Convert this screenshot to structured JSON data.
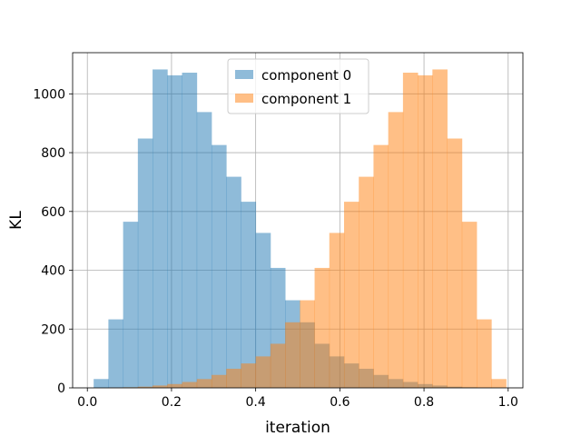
{
  "chart_data": {
    "type": "histogram",
    "xlabel": "iteration",
    "ylabel": "KL",
    "xlim": [
      -0.035,
      1.035
    ],
    "ylim": [
      0,
      1140
    ],
    "xticks": [
      0.0,
      0.2,
      0.4,
      0.6,
      0.8,
      1.0
    ],
    "xtick_labels": [
      "0.0",
      "0.2",
      "0.4",
      "0.6",
      "0.8",
      "1.0"
    ],
    "yticks": [
      0,
      200,
      400,
      600,
      800,
      1000
    ],
    "ytick_labels": [
      "0",
      "200",
      "400",
      "600",
      "800",
      "1000"
    ],
    "grid": true,
    "legend_position": "upper center",
    "bin_edges": [
      0.015,
      0.05,
      0.085,
      0.12,
      0.155,
      0.19,
      0.225,
      0.26,
      0.295,
      0.33,
      0.365,
      0.4,
      0.435,
      0.47,
      0.505,
      0.54,
      0.575,
      0.61,
      0.645,
      0.68,
      0.715,
      0.75,
      0.785,
      0.82,
      0.855,
      0.89,
      0.925,
      0.96,
      0.995
    ],
    "series": [
      {
        "name": "component 0",
        "color": "#1f77b4",
        "alpha": 0.5,
        "bin_start": 0.015,
        "bin_width": 0.035,
        "values": [
          30,
          233,
          565,
          848,
          1083,
          1063,
          1072,
          938,
          826,
          718,
          633,
          527,
          408,
          298,
          223,
          150,
          107,
          83,
          65,
          44,
          30,
          20,
          13,
          8,
          4,
          2,
          1,
          0
        ]
      },
      {
        "name": "component 1",
        "color": "#ff7f0e",
        "alpha": 0.5,
        "bin_start": 0.015,
        "bin_width": 0.035,
        "values": [
          0,
          1,
          2,
          4,
          8,
          13,
          20,
          30,
          44,
          65,
          83,
          107,
          150,
          223,
          298,
          408,
          527,
          633,
          718,
          826,
          938,
          1072,
          1063,
          1083,
          848,
          565,
          233,
          30
        ]
      }
    ]
  }
}
